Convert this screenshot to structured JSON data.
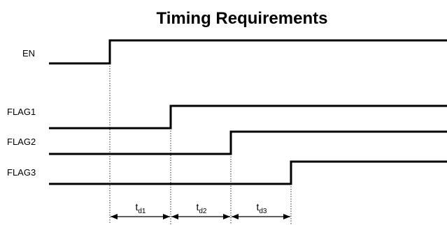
{
  "title": "Timing Requirements",
  "signals": [
    {
      "name": "EN"
    },
    {
      "name": "FLAG1"
    },
    {
      "name": "FLAG2"
    },
    {
      "name": "FLAG3"
    }
  ],
  "delays": [
    {
      "main": "t",
      "sub": "d1"
    },
    {
      "main": "t",
      "sub": "d2"
    },
    {
      "main": "t",
      "sub": "d3"
    }
  ]
}
